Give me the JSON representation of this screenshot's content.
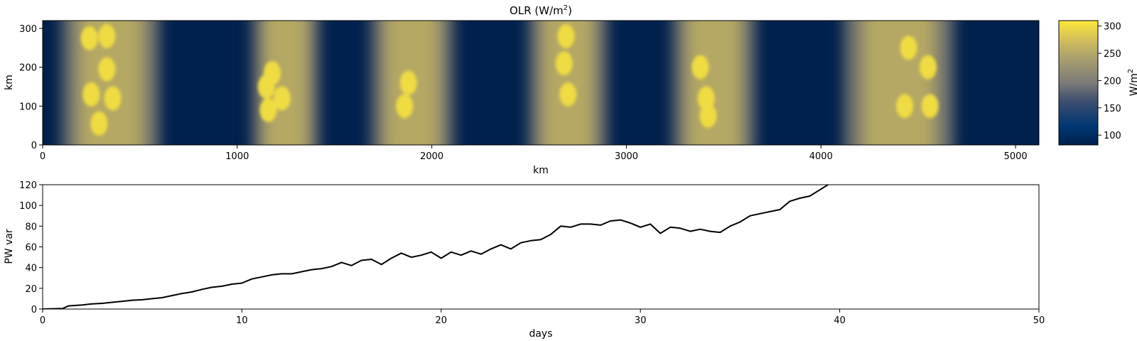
{
  "chart_data": [
    {
      "type": "heatmap",
      "title": "OLR (W/m²)",
      "title_main": "OLR (W/m",
      "title_sup": "2",
      "title_close": ")",
      "xlabel": "km",
      "ylabel": "km",
      "xlim": [
        0,
        5120
      ],
      "ylim": [
        0,
        320
      ],
      "xticks": [
        0,
        1000,
        2000,
        3000,
        4000,
        5000
      ],
      "yticks": [
        0,
        100,
        200,
        300
      ],
      "colormap": "cividis_r",
      "colorbar": {
        "label": "W/m²",
        "label_main": "W/m",
        "label_sup": "2",
        "range": [
          82,
          310
        ],
        "ticks": [
          100,
          150,
          200,
          250,
          300
        ],
        "color_low": "#fde838",
        "color_high": "#00204d"
      },
      "convective_bands": [
        {
          "center_km": 350,
          "width_km": 500
        },
        {
          "center_km": 1250,
          "width_km": 340
        },
        {
          "center_km": 1900,
          "width_km": 420
        },
        {
          "center_km": 2700,
          "width_km": 400
        },
        {
          "center_km": 3450,
          "width_km": 420
        },
        {
          "center_km": 4400,
          "width_km": 560
        }
      ],
      "cloud_cores": [
        {
          "x_km": 240,
          "y_km": 275
        },
        {
          "x_km": 330,
          "y_km": 280
        },
        {
          "x_km": 330,
          "y_km": 195
        },
        {
          "x_km": 250,
          "y_km": 130
        },
        {
          "x_km": 360,
          "y_km": 120
        },
        {
          "x_km": 290,
          "y_km": 55
        },
        {
          "x_km": 1180,
          "y_km": 185
        },
        {
          "x_km": 1150,
          "y_km": 150
        },
        {
          "x_km": 1230,
          "y_km": 120
        },
        {
          "x_km": 1160,
          "y_km": 90
        },
        {
          "x_km": 1880,
          "y_km": 160
        },
        {
          "x_km": 1860,
          "y_km": 100
        },
        {
          "x_km": 2690,
          "y_km": 280
        },
        {
          "x_km": 2700,
          "y_km": 130
        },
        {
          "x_km": 2680,
          "y_km": 210
        },
        {
          "x_km": 3420,
          "y_km": 75
        },
        {
          "x_km": 3410,
          "y_km": 120
        },
        {
          "x_km": 3380,
          "y_km": 200
        },
        {
          "x_km": 4430,
          "y_km": 100
        },
        {
          "x_km": 4450,
          "y_km": 250
        },
        {
          "x_km": 4550,
          "y_km": 200
        },
        {
          "x_km": 4560,
          "y_km": 100
        }
      ]
    },
    {
      "type": "line",
      "title": "",
      "xlabel": "days",
      "ylabel": "PW var",
      "xlim": [
        0,
        50
      ],
      "ylim": [
        0,
        120
      ],
      "xticks": [
        0,
        10,
        20,
        30,
        40,
        50
      ],
      "yticks": [
        0,
        20,
        40,
        60,
        80,
        100,
        120
      ],
      "line_color": "#000000",
      "series": [
        {
          "x": [
            0,
            1.0,
            1.3,
            2.0,
            2.5,
            3.0,
            3.5,
            4.0,
            4.5,
            5.0,
            5.5,
            6.0,
            6.5,
            7.0,
            7.5,
            8.0,
            8.5,
            9.0,
            9.5,
            10.0,
            10.5,
            11.0,
            11.5,
            12.0,
            12.5,
            13.0,
            13.5,
            14.0,
            14.5,
            15.0,
            15.5,
            16.0,
            16.5,
            17.0,
            17.5,
            18.0,
            18.5,
            19.0,
            19.5,
            20.0,
            20.5,
            21.0,
            21.5,
            22.0,
            22.5,
            23.0,
            23.5,
            24.0,
            24.5,
            25.0,
            25.5,
            26.0,
            26.5,
            27.0,
            27.5,
            28.0,
            28.5,
            29.0,
            29.5,
            30.0,
            30.5,
            31.0,
            31.5,
            32.0,
            32.5,
            33.0,
            33.5,
            34.0,
            34.5,
            35.0,
            35.5,
            36.0,
            36.5,
            37.0,
            37.5,
            38.0,
            38.5,
            39.0,
            39.5
          ],
          "values": [
            0,
            0.5,
            3,
            4,
            5,
            5.5,
            6.5,
            7.5,
            8.5,
            9,
            10,
            11,
            13,
            15,
            16.5,
            19,
            21,
            22,
            24,
            25,
            29,
            31,
            33,
            34,
            34,
            36,
            38,
            39,
            41,
            45,
            42,
            47,
            48,
            43,
            49,
            54,
            50,
            52,
            55,
            49,
            55,
            52,
            56,
            53,
            58,
            62,
            58,
            64,
            66,
            67,
            72,
            80,
            79,
            82,
            82,
            81,
            85,
            86,
            83,
            79,
            82,
            73,
            79,
            78,
            75,
            77,
            75,
            74,
            80,
            84,
            90,
            92,
            94,
            96,
            104,
            107,
            109,
            115,
            121
          ]
        }
      ]
    }
  ]
}
